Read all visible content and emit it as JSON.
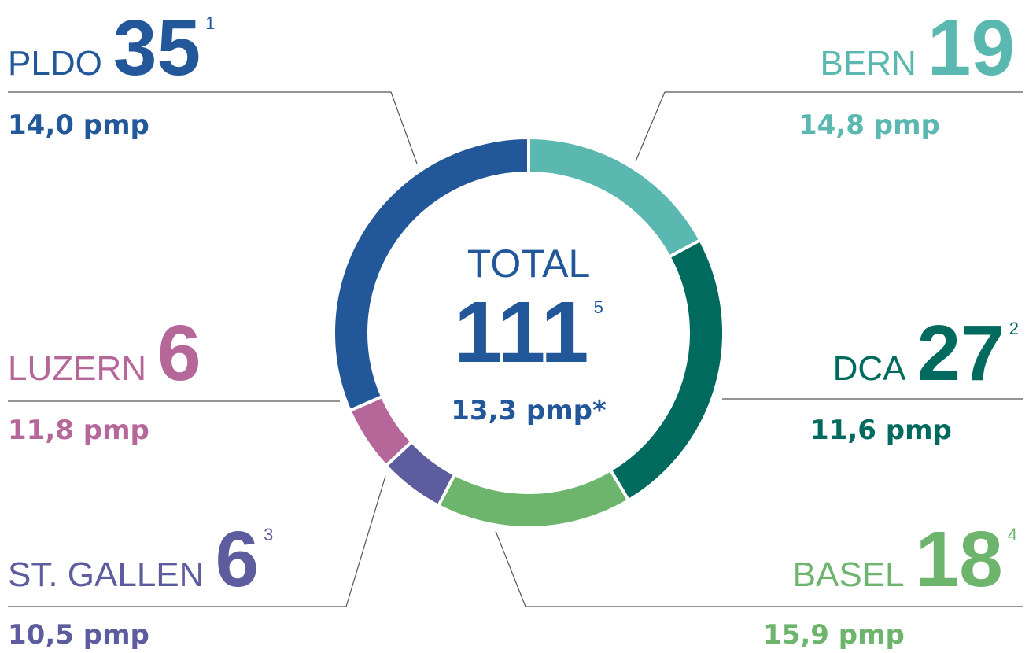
{
  "chart_data": {
    "type": "donut",
    "categories": [
      "BERN",
      "DCA",
      "BASEL",
      "ST. GALLEN",
      "LUZERN",
      "PLDO"
    ],
    "values": [
      19,
      27,
      18,
      6,
      6,
      35
    ],
    "footnotes": [
      null,
      "2",
      "4",
      "3",
      null,
      "1"
    ],
    "pmp_labels": [
      "14,8 pmp",
      "11,6 pmp",
      "15,9 pmp",
      "10,5 pmp",
      "11,8 pmp",
      "14,0 pmp"
    ],
    "colors": [
      "#5ab8b0",
      "#006a5e",
      "#6db56d",
      "#5c5c9e",
      "#b5679a",
      "#22579a"
    ],
    "center_title": "TOTAL",
    "total": 111,
    "total_footnote": "5",
    "total_pmp": "13,3 pmp*",
    "total_color": "#22579a"
  }
}
